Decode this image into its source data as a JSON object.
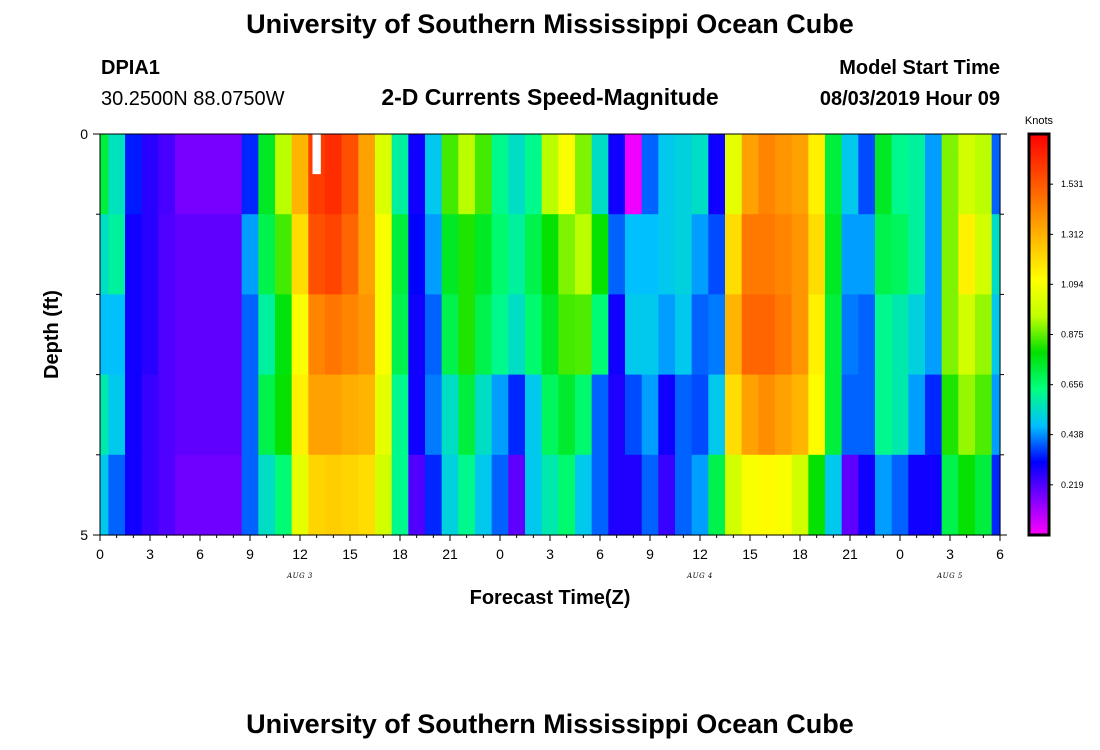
{
  "header": {
    "title": "University of Southern Mississippi Ocean Cube",
    "footer_title": "University of Southern Mississippi Ocean Cube",
    "station_id": "DPIA1",
    "coordinates": "30.2500N 88.0750W",
    "start_label": "Model Start Time",
    "start_value": "08/03/2019 Hour 09"
  },
  "chart_data": {
    "type": "heatmap",
    "title": "2-D Currents Speed-Magnitude",
    "xlabel": "Forecast Time(Z)",
    "ylabel": "Depth (ft)",
    "xlim": [
      0,
      54
    ],
    "ylim": [
      0,
      5
    ],
    "x_ticks": [
      "0",
      "3",
      "6",
      "9",
      "12",
      "15",
      "18",
      "21",
      "0",
      "3",
      "6",
      "9",
      "12",
      "15",
      "18",
      "21",
      "0",
      "3",
      "6"
    ],
    "day_labels": [
      {
        "text": "AUG 3",
        "x": 12
      },
      {
        "text": "AUG 4",
        "x": 36
      },
      {
        "text": "AUG 5",
        "x": 51
      }
    ],
    "y_ticks": [
      "0",
      "5"
    ],
    "colorbar": {
      "unit": "Knots",
      "ticks": [
        "0.219",
        "0.438",
        "0.656",
        "0.875",
        "1.094",
        "1.312",
        "1.531"
      ],
      "tick_values": [
        0.219,
        0.438,
        0.656,
        0.875,
        1.094,
        1.312,
        1.531
      ],
      "min": 0.0,
      "max": 1.75,
      "colors": [
        "#ff00ff",
        "#8000ff",
        "#0000ff",
        "#00c0ff",
        "#00ff80",
        "#00e000",
        "#c0ff00",
        "#ffff00",
        "#ffc000",
        "#ff8000",
        "#ff4000",
        "#ff0000"
      ]
    },
    "depth_layers": [
      0,
      0.5,
      1.5,
      2.5,
      3.5,
      4.5
    ],
    "hours": [
      0,
      1,
      2,
      3,
      4,
      5,
      6,
      7,
      8,
      9,
      10,
      11,
      12,
      13,
      14,
      15,
      16,
      17,
      18,
      19,
      20,
      21,
      22,
      23,
      24,
      25,
      26,
      27,
      28,
      29,
      30,
      31,
      32,
      33,
      34,
      35,
      36,
      37,
      38,
      39,
      40,
      41,
      42,
      43,
      44,
      45,
      46,
      47,
      48,
      49,
      50,
      51,
      52,
      53,
      54
    ],
    "speed_knots": [
      [
        0.72,
        0.56,
        0.34,
        0.27,
        0.23,
        0.17,
        0.17,
        0.17,
        0.17,
        0.35,
        0.75,
        0.95,
        1.3,
        1.6,
        1.64,
        1.55,
        1.35,
        1.02,
        0.6,
        0.3,
        0.5,
        0.85,
        0.95,
        0.85,
        0.62,
        0.55,
        0.62,
        0.95,
        1.1,
        0.9,
        0.55,
        0.3,
        0.02,
        0.4,
        0.5,
        0.52,
        0.55,
        0.3,
        1.05,
        1.35,
        1.42,
        1.38,
        1.35,
        1.15,
        0.72,
        0.5,
        0.38,
        0.75,
        0.62,
        0.6,
        0.45,
        0.9,
        1.0,
        0.95,
        0.4
      ],
      [
        0.72,
        0.56,
        0.34,
        0.27,
        0.23,
        0.17,
        0.17,
        0.17,
        0.17,
        0.35,
        0.75,
        0.95,
        1.3,
        1.6,
        1.64,
        1.55,
        1.35,
        1.02,
        0.6,
        0.3,
        0.5,
        0.85,
        0.95,
        0.85,
        0.62,
        0.55,
        0.62,
        0.95,
        1.1,
        0.9,
        0.55,
        0.3,
        0.02,
        0.4,
        0.5,
        0.52,
        0.55,
        0.3,
        1.05,
        1.35,
        1.42,
        1.38,
        1.35,
        1.15,
        0.72,
        0.5,
        0.38,
        0.75,
        0.62,
        0.6,
        0.45,
        0.9,
        1.0,
        0.95,
        0.4
      ],
      [
        0.55,
        0.6,
        0.3,
        0.27,
        0.22,
        0.2,
        0.2,
        0.2,
        0.2,
        0.45,
        0.7,
        0.85,
        1.2,
        1.55,
        1.58,
        1.5,
        1.35,
        1.1,
        0.72,
        0.32,
        0.45,
        0.75,
        0.82,
        0.75,
        0.66,
        0.6,
        0.7,
        0.8,
        0.9,
        0.95,
        0.8,
        0.4,
        0.48,
        0.48,
        0.5,
        0.52,
        0.45,
        0.38,
        1.2,
        1.45,
        1.45,
        1.42,
        1.38,
        1.2,
        0.75,
        0.45,
        0.45,
        0.7,
        0.68,
        0.6,
        0.45,
        0.9,
        1.15,
        1.0,
        0.55
      ],
      [
        0.48,
        0.48,
        0.3,
        0.27,
        0.22,
        0.2,
        0.2,
        0.2,
        0.2,
        0.4,
        0.6,
        0.78,
        1.1,
        1.42,
        1.46,
        1.42,
        1.38,
        1.1,
        0.7,
        0.3,
        0.4,
        0.7,
        0.82,
        0.7,
        0.62,
        0.55,
        0.66,
        0.75,
        0.85,
        0.86,
        0.65,
        0.3,
        0.5,
        0.5,
        0.45,
        0.5,
        0.4,
        0.42,
        1.3,
        1.5,
        1.5,
        1.45,
        1.38,
        1.15,
        0.72,
        0.42,
        0.4,
        0.62,
        0.58,
        0.52,
        0.45,
        0.9,
        1.0,
        0.92,
        0.5
      ],
      [
        0.58,
        0.5,
        0.3,
        0.25,
        0.22,
        0.2,
        0.2,
        0.2,
        0.2,
        0.4,
        0.7,
        0.8,
        1.15,
        1.35,
        1.35,
        1.32,
        1.3,
        1.05,
        0.62,
        0.3,
        0.42,
        0.55,
        0.72,
        0.55,
        0.45,
        0.35,
        0.5,
        0.68,
        0.74,
        0.66,
        0.4,
        0.28,
        0.38,
        0.45,
        0.3,
        0.4,
        0.38,
        0.5,
        1.2,
        1.35,
        1.4,
        1.35,
        1.3,
        1.12,
        0.72,
        0.4,
        0.4,
        0.62,
        0.58,
        0.45,
        0.35,
        0.82,
        0.92,
        0.86,
        0.45
      ],
      [
        0.5,
        0.4,
        0.3,
        0.25,
        0.22,
        0.18,
        0.18,
        0.18,
        0.18,
        0.4,
        0.55,
        0.65,
        1.05,
        1.22,
        1.24,
        1.22,
        1.2,
        1.0,
        0.62,
        0.22,
        0.35,
        0.52,
        0.62,
        0.5,
        0.4,
        0.2,
        0.5,
        0.58,
        0.66,
        0.5,
        0.4,
        0.28,
        0.28,
        0.4,
        0.25,
        0.4,
        0.45,
        0.7,
        1.0,
        1.1,
        1.12,
        1.1,
        1.0,
        0.8,
        0.5,
        0.2,
        0.3,
        0.45,
        0.4,
        0.3,
        0.3,
        0.7,
        0.8,
        0.72,
        0.35
      ]
    ],
    "missing": [
      {
        "hour": 13,
        "depth_from": 0,
        "depth_to": 0.5
      }
    ]
  }
}
